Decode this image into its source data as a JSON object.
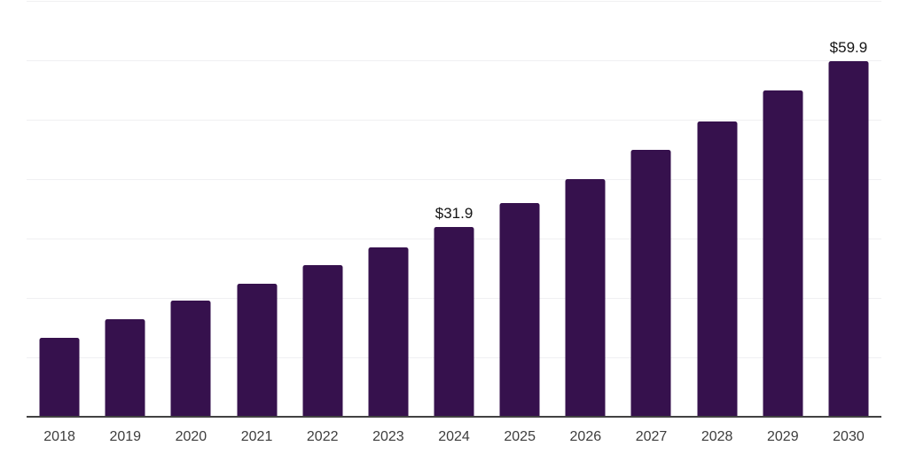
{
  "colors": {
    "background": "#ffffff",
    "bar": "#36114d",
    "axis_line": "#424242",
    "gridline": "#f0f0f2",
    "tick_label": "#3d3d3d",
    "value_label": "#151515"
  },
  "chart_data": {
    "type": "bar",
    "categories": [
      "2018",
      "2019",
      "2020",
      "2021",
      "2022",
      "2023",
      "2024",
      "2025",
      "2026",
      "2027",
      "2028",
      "2029",
      "2030"
    ],
    "values": [
      13.3,
      16.4,
      19.5,
      22.4,
      25.5,
      28.5,
      31.9,
      36.0,
      40.0,
      44.9,
      49.7,
      55.0,
      59.9
    ],
    "value_labels": [
      null,
      null,
      null,
      null,
      null,
      null,
      "$31.9",
      null,
      null,
      null,
      null,
      null,
      "$59.9"
    ],
    "title": "",
    "xlabel": "",
    "ylabel": "",
    "ylim": [
      0,
      70
    ],
    "gridline_step": 10,
    "grid": "horizontal-only",
    "y_tick_labels_visible": false,
    "legend": "none",
    "bar_corner_radius": "rounded-top"
  }
}
